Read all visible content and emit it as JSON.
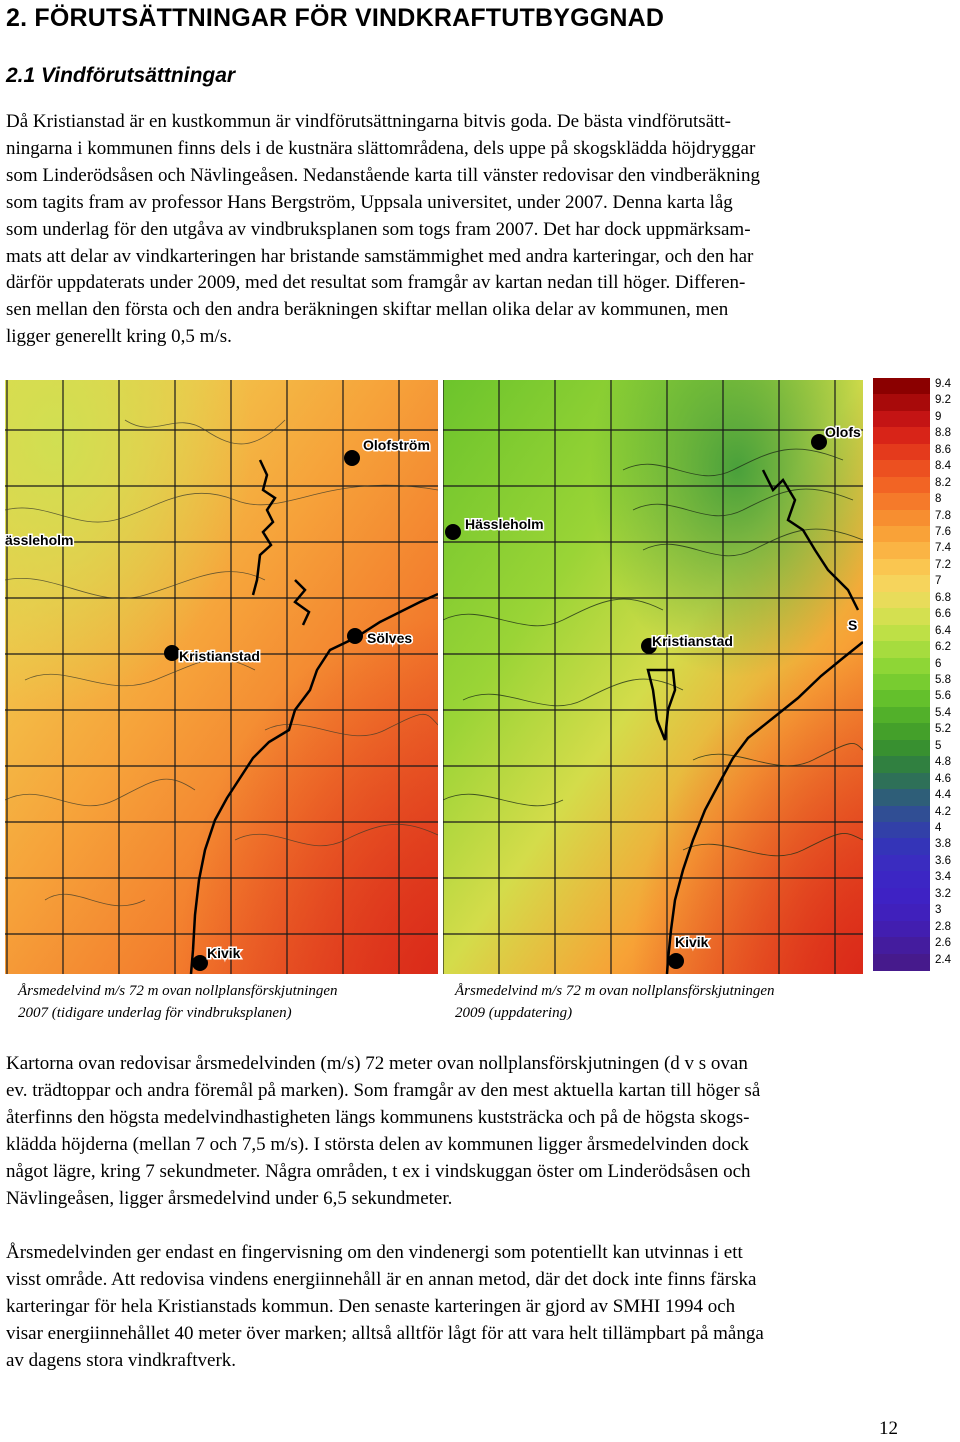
{
  "heading": "2. FÖRUTSÄTTNINGAR FÖR VINDKRAFTUTBYGGNAD",
  "subheading": "2.1 Vindförutsättningar",
  "paragraph1": [
    "Då Kristianstad är en kustkommun är vindförutsättningarna bitvis goda. De bästa vindförutsätt-",
    "ningarna i kommunen finns dels i de kustnära slättområdena, dels uppe på skogsklädda höjdryggar",
    "som Linderödsåsen och Nävlingeåsen. Nedanstående karta till vänster redovisar den vindberäkning",
    "som tagits fram av professor Hans Bergström, Uppsala universitet, under 2007. Denna karta låg",
    "som underlag för den utgåva av vindbruksplanen som togs fram 2007. Det har dock uppmärksam-",
    "mats att delar av vindkarteringen har bristande samstämmighet med andra karteringar, och den har",
    "därför uppdaterats under 2009, med det resultat som framgår av kartan nedan till höger. Differen-",
    "sen mellan den första och den andra beräkningen skiftar mellan olika delar av kommunen, men",
    "ligger generellt kring 0,5 m/s."
  ],
  "map_left": {
    "labels": [
      "Olofström",
      "ässleholm",
      "Sölves",
      "Kristianstad",
      "Kivik"
    ],
    "caption": [
      "Årsmedelvind  m/s 72 m ovan nollplansförskjutningen",
      "2007 (tidigare underlag för vindbruksplanen)"
    ]
  },
  "map_right": {
    "labels": [
      "Olofs",
      "Hässleholm",
      "Kristianstad",
      "S",
      "Kivik"
    ],
    "caption": [
      "Årsmedelvind  m/s 72 m ovan nollplansförskjutningen",
      "2009 (uppdatering)"
    ]
  },
  "legend": {
    "values": [
      "9.4",
      "9.2",
      "9",
      "8.8",
      "8.6",
      "8.4",
      "8.2",
      "8",
      "7.8",
      "7.6",
      "7.4",
      "7.2",
      "7",
      "6.8",
      "6.6",
      "6.4",
      "6.2",
      "6",
      "5.8",
      "5.6",
      "5.4",
      "5.2",
      "5",
      "4.8",
      "4.6",
      "4.4",
      "4.2",
      "4",
      "3.8",
      "3.6",
      "3.4",
      "3.2",
      "3",
      "2.8",
      "2.6",
      "2.4"
    ],
    "colors": [
      "#8b0000",
      "#a80a0a",
      "#c41414",
      "#d82418",
      "#e43a1c",
      "#ec5020",
      "#f26424",
      "#f57a2a",
      "#f78e30",
      "#f9a238",
      "#fab444",
      "#fac650",
      "#f6d45c",
      "#e8dc5a",
      "#d4e050",
      "#bee046",
      "#a6dc3e",
      "#8ed636",
      "#78cc30",
      "#64c02c",
      "#52b02a",
      "#44a02a",
      "#389030",
      "#308040",
      "#2e7058",
      "#2e5e78",
      "#304e94",
      "#3240a8",
      "#3434b8",
      "#3a2cc0",
      "#3c26c4",
      "#3e22c4",
      "#4020bc",
      "#421eb0",
      "#441c9e",
      "#461a8c"
    ]
  },
  "paragraph2": [
    "Kartorna ovan redovisar årsmedelvinden (m/s) 72 meter ovan nollplansförskjutningen (d v s ovan",
    "ev. trädtoppar och andra föremål på marken). Som framgår av den mest aktuella kartan till höger så",
    "återfinns den högsta medelvindhastigheten längs kommunens kuststräcka och på de högsta skogs-",
    "klädda höjderna (mellan 7 och 7,5  m/s). I största delen av kommunen ligger årsmedelvinden dock",
    "något lägre, kring 7 sekundmeter. Några områden, t ex i vindskuggan öster om Linderödsåsen och",
    "Nävlingeåsen, ligger årsmedelvind under 6,5 sekundmeter."
  ],
  "paragraph3": [
    "Årsmedelvinden ger endast en fingervisning om den vindenergi som potentiellt kan utvinnas i ett",
    "visst område. Att redovisa vindens energiinnehåll är en annan metod, där det dock inte finns färska",
    "karteringar för hela Kristianstads kommun. Den senaste karteringen är gjord av SMHI 1994 och",
    "visar energiinnehållet 40 meter över marken; alltså alltför lågt för att vara helt tillämpbart på många",
    "av dagens stora vindkraftverk."
  ],
  "page_number": "12"
}
